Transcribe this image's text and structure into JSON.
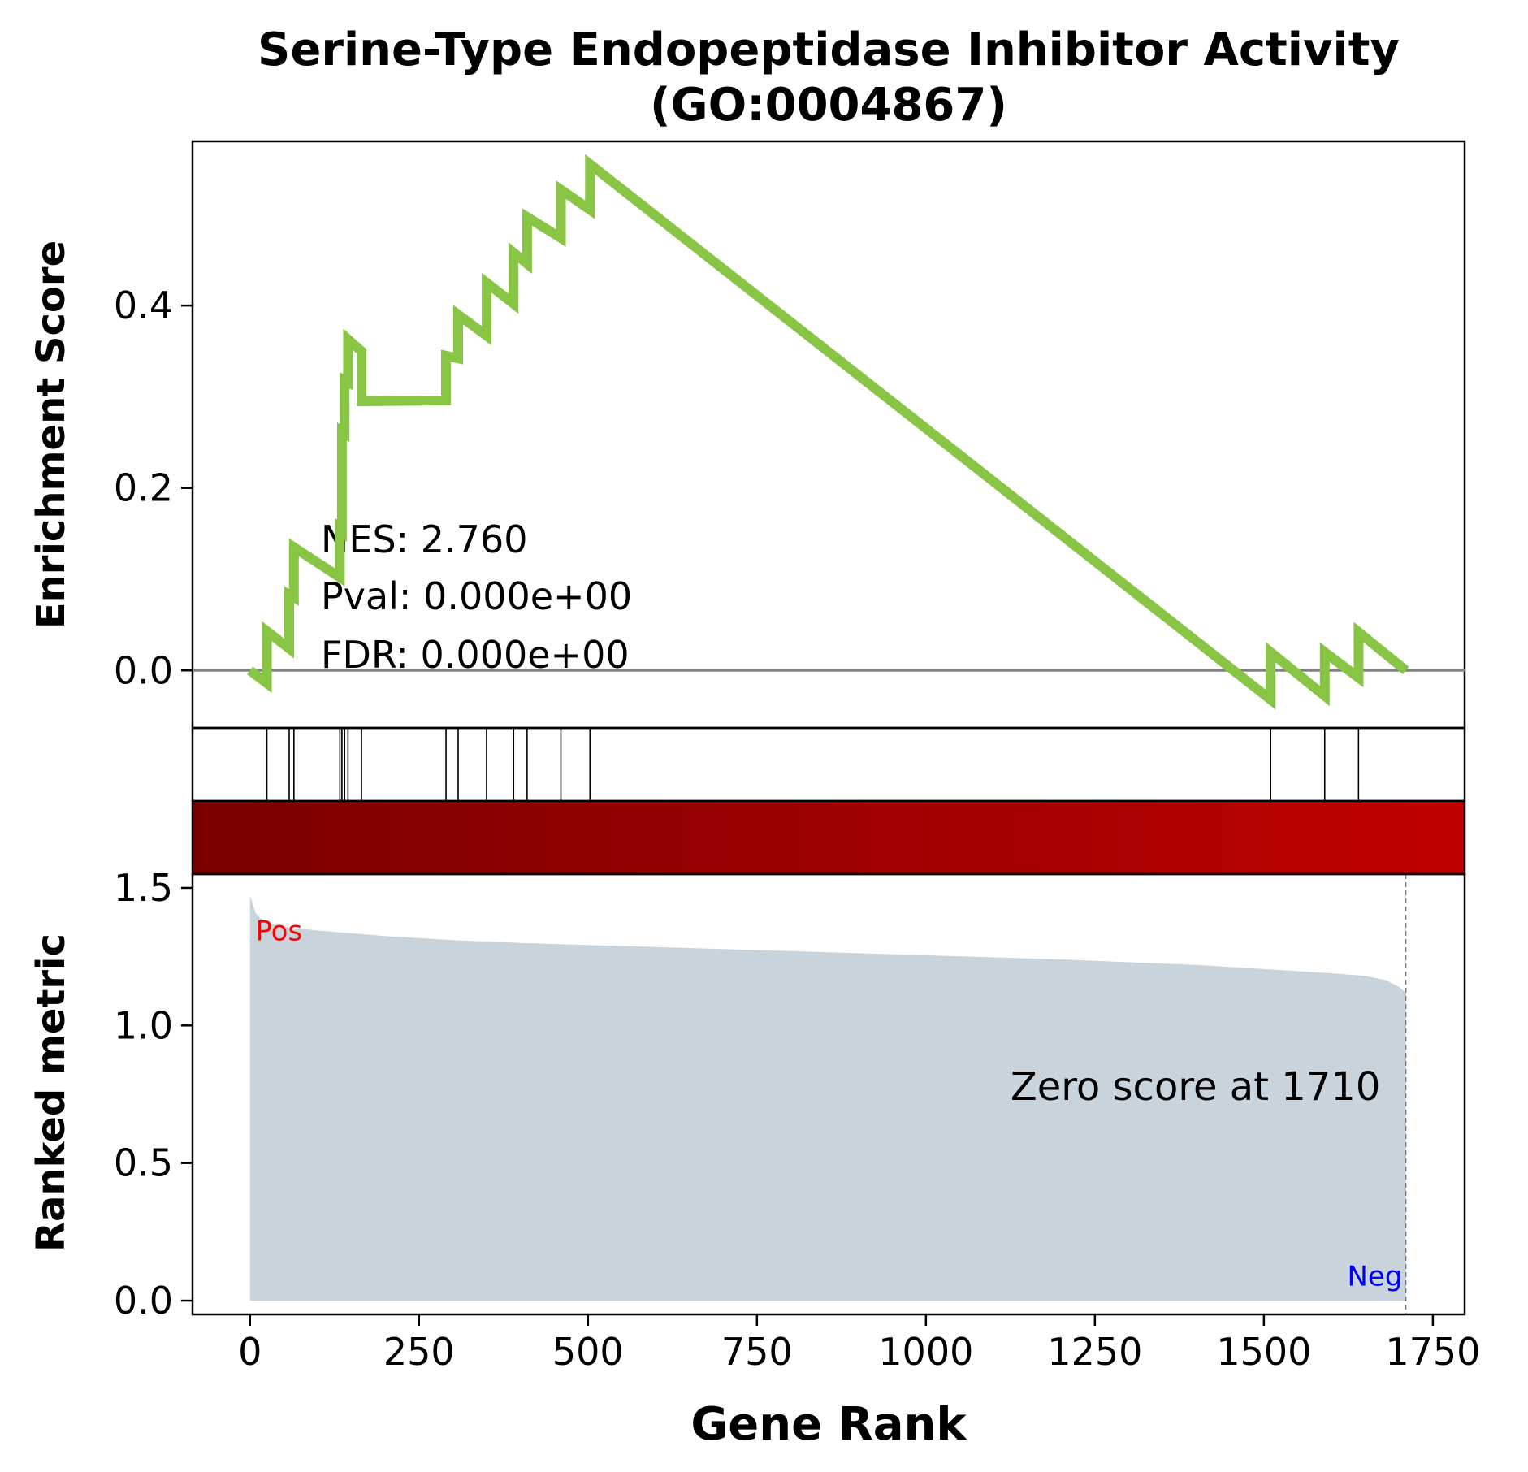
{
  "figure": {
    "title_line1": "Serine-Type Endopeptidase Inhibitor Activity",
    "title_line2": "(GO:0004867)",
    "colors": {
      "es_line": "#88c544",
      "fill": "#c8d3dc",
      "pos_label": "#ff0000",
      "neg_label": "#0000ff",
      "heat_start": "#7a0000",
      "heat_end": "#c00000"
    }
  },
  "chart_data": [
    {
      "type": "line",
      "panel": "enrichment",
      "ylabel": "Enrichment Score",
      "xlim": [
        -85,
        1797
      ],
      "ylim": [
        -0.063,
        0.58
      ],
      "x_ticks": [
        0,
        250,
        500,
        750,
        1000,
        1250,
        1500,
        1750
      ],
      "y_ticks": [
        0.0,
        0.2,
        0.4
      ],
      "y_tick_labels": [
        "0.0",
        "0.2",
        "0.4"
      ],
      "zero_line": 0.0,
      "annotation": [
        "NES: 2.760",
        "Pval: 0.000e+00",
        "FDR: 0.000e+00"
      ],
      "series": [
        {
          "x": [
            0,
            25,
            25,
            58,
            58,
            65,
            65,
            133,
            133,
            136,
            136,
            140,
            140,
            145,
            145,
            165,
            165,
            290,
            290,
            308,
            308,
            350,
            350,
            390,
            390,
            410,
            410,
            460,
            460,
            503,
            503,
            1510,
            1510,
            1590,
            1590,
            1640,
            1640,
            1710
          ],
          "y": [
            0.0,
            -0.014,
            0.043,
            0.024,
            0.083,
            0.08,
            0.135,
            0.102,
            0.155,
            0.153,
            0.262,
            0.26,
            0.318,
            0.316,
            0.363,
            0.35,
            0.295,
            0.296,
            0.345,
            0.342,
            0.39,
            0.367,
            0.425,
            0.402,
            0.458,
            0.446,
            0.497,
            0.474,
            0.527,
            0.505,
            0.555,
            -0.032,
            0.02,
            -0.028,
            0.02,
            -0.008,
            0.042,
            0.0
          ]
        }
      ]
    },
    {
      "type": "area",
      "panel": "ranked_metric",
      "xlabel": "Gene Rank",
      "ylabel": "Ranked metric",
      "xlim": [
        -85,
        1797
      ],
      "ylim": [
        -0.05,
        1.55
      ],
      "x_ticks": [
        0,
        250,
        500,
        750,
        1000,
        1250,
        1500,
        1750
      ],
      "x_tick_labels": [
        "0",
        "250",
        "500",
        "750",
        "1000",
        "1250",
        "1500",
        "1750"
      ],
      "y_ticks": [
        0.0,
        0.5,
        1.0,
        1.5
      ],
      "y_tick_labels": [
        "0.0",
        "0.5",
        "1.0",
        "1.5"
      ],
      "hit_ranks": [
        25,
        58,
        65,
        133,
        136,
        140,
        145,
        165,
        290,
        308,
        350,
        390,
        410,
        460,
        503,
        1510,
        1590,
        1640
      ],
      "zero_score_rank": 1710,
      "zero_score_label": "Zero score at 1710",
      "pos_label": "Pos",
      "neg_label": "Neg",
      "series": [
        {
          "x": [
            0,
            3,
            8,
            15,
            30,
            60,
            100,
            150,
            200,
            300,
            400,
            600,
            800,
            1000,
            1200,
            1400,
            1500,
            1600,
            1650,
            1680,
            1700,
            1710
          ],
          "y": [
            1.47,
            1.45,
            1.41,
            1.39,
            1.37,
            1.355,
            1.345,
            1.335,
            1.325,
            1.31,
            1.3,
            1.285,
            1.27,
            1.255,
            1.24,
            1.22,
            1.205,
            1.19,
            1.18,
            1.165,
            1.14,
            1.12
          ]
        }
      ]
    }
  ]
}
